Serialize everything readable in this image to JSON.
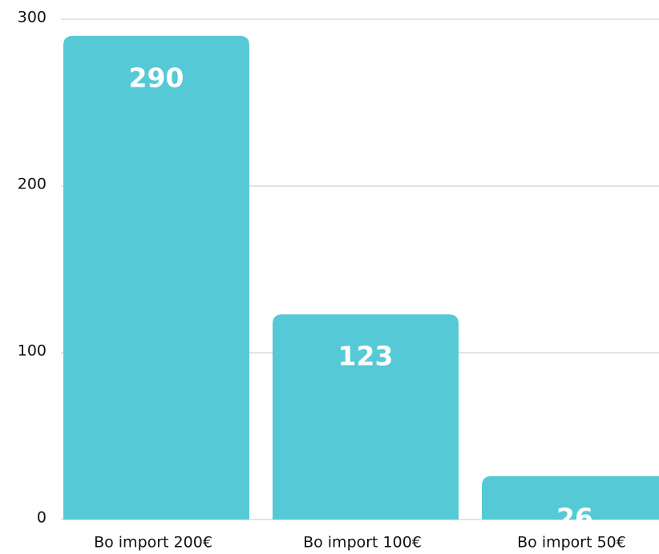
{
  "chart_data": {
    "type": "bar",
    "categories": [
      "Bo import 200€",
      "Bo import 100€",
      "Bo import 50€"
    ],
    "values": [
      290,
      123,
      26
    ],
    "color": "#56c9d6",
    "ylim": [
      0,
      300
    ],
    "yticks": [
      0,
      100,
      200,
      300
    ],
    "grid": true
  }
}
